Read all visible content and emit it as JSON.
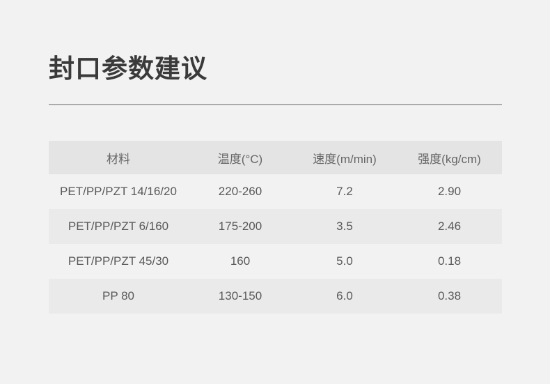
{
  "title": "封口参数建议",
  "colors": {
    "page_bg": "#f2f2f2",
    "header_row_bg": "#e4e4e4",
    "stripe_row_bg": "#eaeaea",
    "title_text": "#3a3a3a",
    "cell_text": "#595959",
    "divider": "#ababab"
  },
  "table": {
    "columns": [
      "材料",
      "温度(°C)",
      "速度(m/min)",
      "强度(kg/cm)"
    ],
    "rows": [
      {
        "cells": [
          "PET/PP/PZT 14/16/20",
          "220-260",
          "7.2",
          "2.90"
        ]
      },
      {
        "cells": [
          "PET/PP/PZT 6/160",
          "175-200",
          "3.5",
          "2.46"
        ]
      },
      {
        "cells": [
          "PET/PP/PZT 45/30",
          "160",
          "5.0",
          "0.18"
        ]
      },
      {
        "cells": [
          "PP 80",
          "130-150",
          "6.0",
          "0.38"
        ]
      }
    ]
  }
}
